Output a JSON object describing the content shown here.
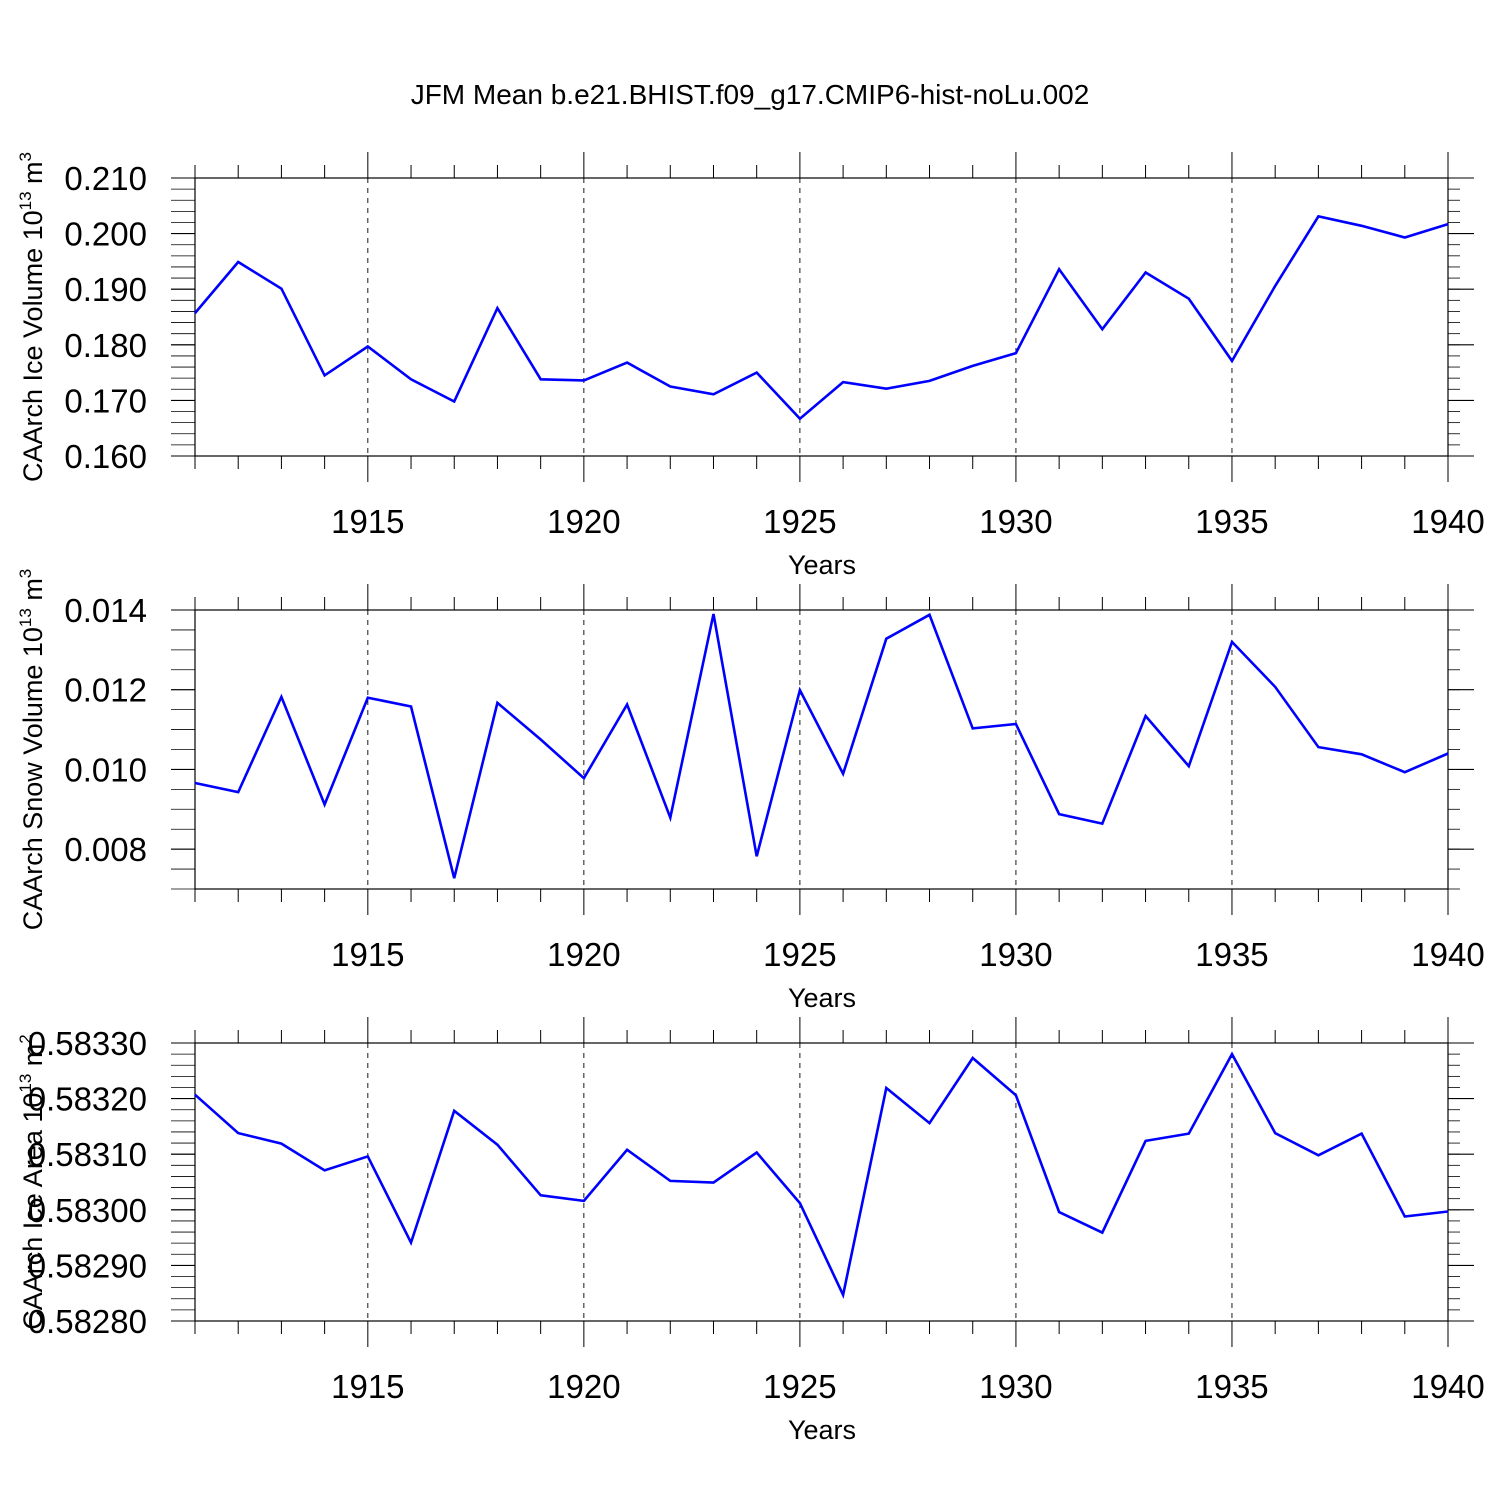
{
  "figure": {
    "title": "JFM Mean b.e21.BHIST.f09_g17.CMIP6-hist-noLu.002"
  },
  "chart_data": [
    {
      "type": "line",
      "title": "",
      "xlabel": "Years",
      "ylabel": "CAArch Ice Volume 10",
      "ylabel_exponent": "13",
      "ylabel_unit": " m",
      "ylabel_unit_exponent": "3",
      "xlim": [
        1911,
        1940
      ],
      "ylim": [
        0.16,
        0.21
      ],
      "x_ticks": [
        1915,
        1920,
        1925,
        1930,
        1935,
        1940
      ],
      "y_ticks": [
        "0.160",
        "0.170",
        "0.180",
        "0.190",
        "0.200",
        "0.210"
      ],
      "grid": "vertical dashed at major x ticks",
      "color": "#0000ff",
      "x": [
        1911,
        1912,
        1913,
        1914,
        1915,
        1916,
        1917,
        1918,
        1919,
        1920,
        1921,
        1922,
        1923,
        1924,
        1925,
        1926,
        1927,
        1928,
        1929,
        1930,
        1931,
        1932,
        1933,
        1934,
        1935,
        1936,
        1937,
        1938,
        1939,
        1940
      ],
      "values": [
        0.1857,
        0.1949,
        0.1901,
        0.1745,
        0.1797,
        0.1738,
        0.1698,
        0.1866,
        0.1738,
        0.1736,
        0.1768,
        0.1725,
        0.1711,
        0.175,
        0.1667,
        0.1733,
        0.1721,
        0.1735,
        0.1762,
        0.1785,
        0.1936,
        0.1828,
        0.193,
        0.1883,
        0.1771,
        0.1906,
        0.2031,
        0.2014,
        0.1993,
        0.2017
      ]
    },
    {
      "type": "line",
      "title": "",
      "xlabel": "Years",
      "ylabel": "CAArch Snow Volume 10",
      "ylabel_exponent": "13",
      "ylabel_unit": " m",
      "ylabel_unit_exponent": "3",
      "xlim": [
        1911,
        1940
      ],
      "ylim": [
        0.007,
        0.014
      ],
      "x_ticks": [
        1915,
        1920,
        1925,
        1930,
        1935,
        1940
      ],
      "y_ticks": [
        "0.008",
        "0.010",
        "0.012",
        "0.014"
      ],
      "grid": "vertical dashed at major x ticks",
      "color": "#0000ff",
      "x": [
        1911,
        1912,
        1913,
        1914,
        1915,
        1916,
        1917,
        1918,
        1919,
        1920,
        1921,
        1922,
        1923,
        1924,
        1925,
        1926,
        1927,
        1928,
        1929,
        1930,
        1931,
        1932,
        1933,
        1934,
        1935,
        1936,
        1937,
        1938,
        1939,
        1940
      ],
      "values": [
        0.00966,
        0.00943,
        0.01182,
        0.00912,
        0.0118,
        0.01158,
        0.00727,
        0.01167,
        0.01075,
        0.00978,
        0.01163,
        0.00879,
        0.0139,
        0.00782,
        0.01199,
        0.00989,
        0.01328,
        0.01388,
        0.01103,
        0.01114,
        0.00888,
        0.00864,
        0.01134,
        0.01008,
        0.0132,
        0.01207,
        0.01056,
        0.01038,
        0.00993,
        0.0104
      ]
    },
    {
      "type": "line",
      "title": "",
      "xlabel": "Years",
      "ylabel": "CAArch Ice Area 10",
      "ylabel_exponent": "13",
      "ylabel_unit": " m",
      "ylabel_unit_exponent": "2",
      "xlim": [
        1911,
        1940
      ],
      "ylim": [
        0.5828,
        0.5833
      ],
      "x_ticks": [
        1915,
        1920,
        1925,
        1930,
        1935,
        1940
      ],
      "y_ticks": [
        "0.58280",
        "0.58290",
        "0.58300",
        "0.58310",
        "0.58320",
        "0.58330"
      ],
      "grid": "vertical dashed at major x ticks",
      "color": "#0000ff",
      "x": [
        1911,
        1912,
        1913,
        1914,
        1915,
        1916,
        1917,
        1918,
        1919,
        1920,
        1921,
        1922,
        1923,
        1924,
        1925,
        1926,
        1927,
        1928,
        1929,
        1930,
        1931,
        1932,
        1933,
        1934,
        1935,
        1936,
        1937,
        1938,
        1939,
        1940
      ],
      "values": [
        0.583207,
        0.583138,
        0.583119,
        0.583071,
        0.583096,
        0.582941,
        0.583178,
        0.583117,
        0.583026,
        0.583016,
        0.583108,
        0.583052,
        0.583049,
        0.583103,
        0.583012,
        0.582847,
        0.583219,
        0.583156,
        0.583273,
        0.583206,
        0.582996,
        0.582959,
        0.583124,
        0.583137,
        0.58328,
        0.583138,
        0.583098,
        0.583137,
        0.582988,
        0.582997
      ]
    }
  ]
}
